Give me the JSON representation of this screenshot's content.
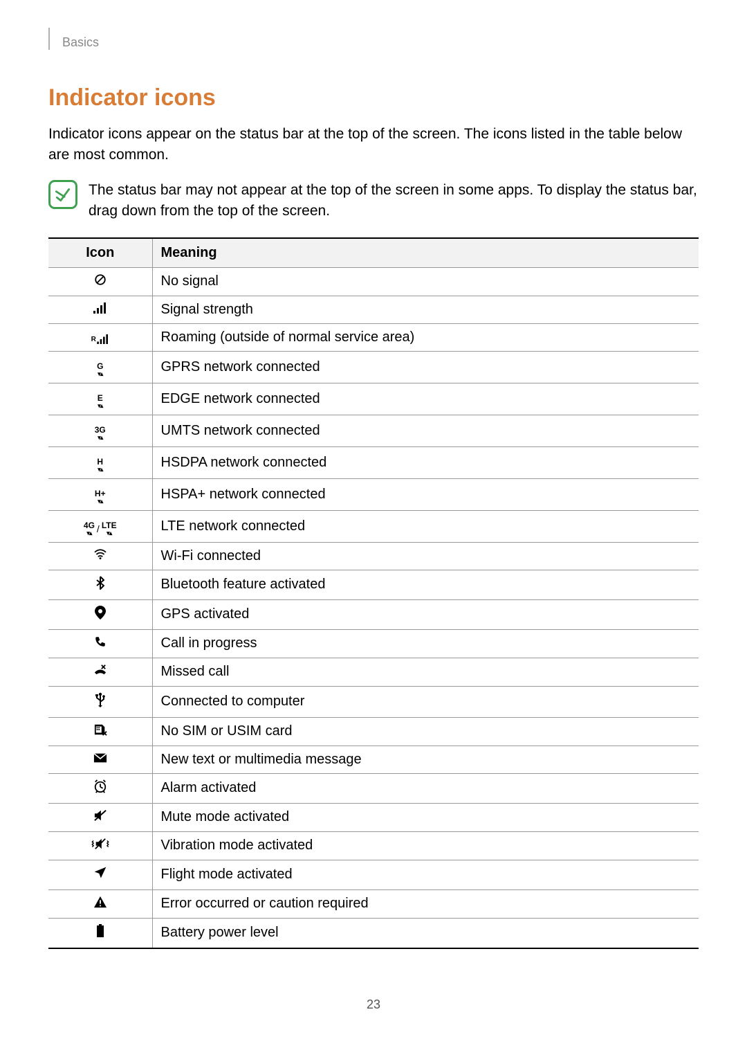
{
  "tab": {
    "label": "Basics"
  },
  "heading": "Indicator icons",
  "intro": "Indicator icons appear on the status bar at the top of the screen. The icons listed in the table below are most common.",
  "note": "The status bar may not appear at the top of the screen in some apps. To display the status bar, drag down from the top of the screen.",
  "table": {
    "header_icon": "Icon",
    "header_meaning": "Meaning",
    "rows": [
      {
        "icon": "no-signal",
        "meaning": "No signal"
      },
      {
        "icon": "signal",
        "meaning": "Signal strength"
      },
      {
        "icon": "roaming",
        "meaning": "Roaming (outside of normal service area)"
      },
      {
        "icon": "gprs",
        "meaning": "GPRS network connected"
      },
      {
        "icon": "edge",
        "meaning": "EDGE network connected"
      },
      {
        "icon": "umts",
        "meaning": "UMTS network connected"
      },
      {
        "icon": "hsdpa",
        "meaning": "HSDPA network connected"
      },
      {
        "icon": "hspa-plus",
        "meaning": "HSPA+ network connected"
      },
      {
        "icon": "lte",
        "meaning": "LTE network connected"
      },
      {
        "icon": "wifi",
        "meaning": "Wi-Fi connected"
      },
      {
        "icon": "bluetooth",
        "meaning": "Bluetooth feature activated"
      },
      {
        "icon": "gps",
        "meaning": "GPS activated"
      },
      {
        "icon": "call",
        "meaning": "Call in progress"
      },
      {
        "icon": "missed-call",
        "meaning": "Missed call"
      },
      {
        "icon": "usb",
        "meaning": "Connected to computer"
      },
      {
        "icon": "no-sim",
        "meaning": "No SIM or USIM card"
      },
      {
        "icon": "message",
        "meaning": "New text or multimedia message"
      },
      {
        "icon": "alarm",
        "meaning": "Alarm activated"
      },
      {
        "icon": "mute",
        "meaning": "Mute mode activated"
      },
      {
        "icon": "vibrate",
        "meaning": "Vibration mode activated"
      },
      {
        "icon": "flight",
        "meaning": "Flight mode activated"
      },
      {
        "icon": "error",
        "meaning": "Error occurred or caution required"
      },
      {
        "icon": "battery",
        "meaning": "Battery power level"
      }
    ]
  },
  "page_number": "23",
  "colors": {
    "heading": "#d97d36",
    "note_border": "#3fa050",
    "table_header_bg": "#f2f2f2",
    "border_strong": "#000000",
    "border_light": "#999999",
    "tab_text": "#888888"
  }
}
